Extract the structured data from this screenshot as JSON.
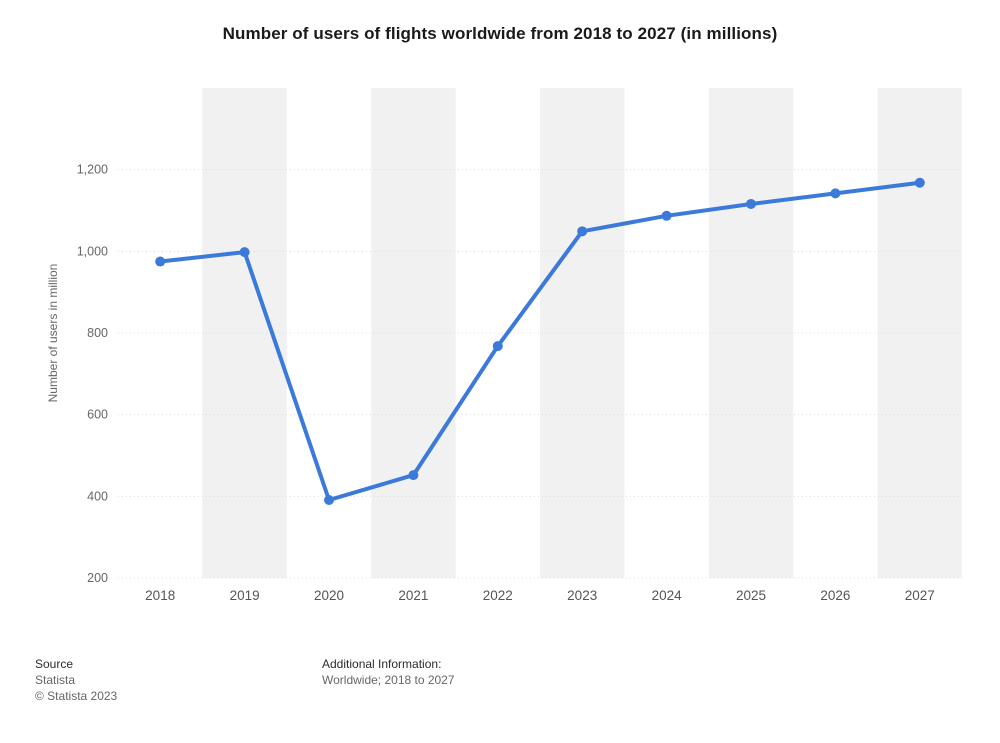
{
  "chart_data": {
    "type": "line",
    "title": "Number of users of flights worldwide from 2018 to 2027 (in millions)",
    "ylabel": "Number of users in million",
    "xlabel": "",
    "categories": [
      "2018",
      "2019",
      "2020",
      "2021",
      "2022",
      "2023",
      "2024",
      "2025",
      "2026",
      "2027"
    ],
    "values": [
      975,
      998,
      391,
      452,
      768,
      1049,
      1087,
      1116,
      1142,
      1168
    ],
    "ylim": [
      200,
      1400
    ],
    "yticks": [
      200,
      400,
      600,
      800,
      1000,
      1200
    ],
    "grid": "horizontal-dotted",
    "legend_position": "none",
    "line_color": "#3b7ad9",
    "band_color": "#f1f1f1",
    "grid_color": "#dcdcdc",
    "tick_color": "#666666",
    "x_tick_color": "#555555"
  },
  "footer": {
    "source_label": "Source",
    "source_name": "Statista",
    "copyright": "© Statista 2023",
    "additional_info_label": "Additional Information:",
    "additional_info_value": "Worldwide; 2018 to 2027"
  }
}
